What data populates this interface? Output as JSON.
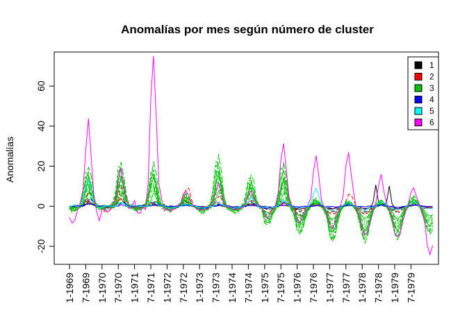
{
  "chart_data": {
    "type": "line",
    "title": "Anomalías por mes según número de cluster",
    "xlabel": "",
    "ylabel": "Anomalías",
    "ylim": [
      -29,
      77
    ],
    "y_ticks": [
      -20,
      0,
      20,
      40,
      60
    ],
    "x_ticks": [
      "1-1969",
      "7-1969",
      "1-1970",
      "7-1970",
      "1-1971",
      "7-1971",
      "1-1972",
      "7-1972",
      "1-1973",
      "7-1973",
      "1-1974",
      "7-1974",
      "1-1975",
      "7-1975",
      "1-1976",
      "7-1976",
      "1-1977",
      "7-1977",
      "1-1978",
      "7-1978",
      "1-1979",
      "7-1979"
    ],
    "legend": {
      "position": "top-right"
    },
    "series": [
      {
        "name": "1",
        "color": "#000000",
        "lines": 3,
        "peaks": [
          4,
          6,
          2,
          3,
          1,
          3,
          4,
          2,
          2,
          1,
          2,
          3,
          4
        ],
        "winters": [
          -1,
          -1,
          -1,
          -1,
          -1,
          -1,
          -2,
          -4,
          -4,
          -4,
          -3,
          -1,
          -1
        ],
        "late_spikes": [
          [
            113,
            11
          ],
          [
            118,
            10
          ]
        ]
      },
      {
        "name": "2",
        "color": "#ff0000",
        "lines": 2,
        "peaks": [
          8,
          10,
          3,
          10,
          5,
          3,
          2,
          2,
          6,
          2,
          2,
          2,
          8
        ],
        "winters": [
          -1,
          -2,
          -1,
          -2,
          -1,
          -2,
          -3,
          -5,
          -4,
          -4,
          -3,
          -1,
          -1
        ],
        "late_spikes": []
      },
      {
        "name": "3",
        "color": "#00c000",
        "lines": 12,
        "peaks": [
          20,
          22,
          22,
          7,
          25,
          16,
          21,
          4,
          3,
          3,
          5,
          5,
          19
        ],
        "winters": [
          -2,
          -1,
          -1,
          -2,
          -3,
          -3,
          -10,
          -14,
          -18,
          -18,
          -17,
          -14,
          -2
        ],
        "late_spikes": []
      },
      {
        "name": "4",
        "color": "#0000ff",
        "lines": 2,
        "peaks": [
          4,
          2,
          2,
          1,
          1,
          1,
          2,
          1,
          1,
          1,
          1,
          1,
          2
        ],
        "winters": [
          0,
          0,
          0,
          0,
          -1,
          -1,
          -1,
          -1,
          -1,
          -1,
          -1,
          -1,
          0
        ],
        "late_spikes": []
      },
      {
        "name": "5",
        "color": "#00ffff",
        "lines": 1,
        "peaks": [
          14,
          2,
          2,
          1,
          2,
          4,
          3,
          9,
          2,
          2,
          2,
          2,
          3
        ],
        "winters": [
          0,
          0,
          0,
          -1,
          -1,
          -1,
          -1,
          -1,
          -2,
          -2,
          -2,
          -1,
          -1
        ],
        "late_spikes": []
      },
      {
        "name": "6",
        "color": "#ff00ff",
        "lines": 1,
        "peaks": [
          42,
          18,
          72,
          8,
          11,
          8,
          31,
          25,
          29,
          15,
          10,
          8,
          14
        ],
        "winters": [
          -10,
          -2,
          -1,
          -2,
          -2,
          -2,
          -5,
          -7,
          -10,
          -14,
          -16,
          -24,
          -12
        ],
        "late_spikes": []
      }
    ]
  }
}
